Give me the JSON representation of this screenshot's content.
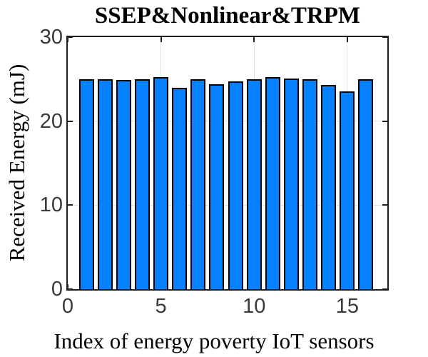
{
  "chart_data": {
    "type": "bar",
    "title": "SSEP&Nonlinear&TRPM",
    "xlabel": "Index of energy poverty IoT sensors",
    "ylabel": "Received Energy (mJ)",
    "x": [
      1,
      2,
      3,
      4,
      5,
      6,
      7,
      8,
      9,
      10,
      11,
      12,
      13,
      14,
      15,
      16
    ],
    "values": [
      25.0,
      25.0,
      24.9,
      25.0,
      25.2,
      24.0,
      25.0,
      24.4,
      24.7,
      25.0,
      25.2,
      25.1,
      25.0,
      24.3,
      23.5,
      25.0
    ],
    "xlim": [
      0,
      17.15
    ],
    "ylim": [
      0,
      30
    ],
    "xticks": [
      0,
      5,
      10,
      15
    ],
    "yticks": [
      0,
      10,
      20,
      30
    ],
    "grid": true,
    "legend": null,
    "bar_width_fraction": 0.8,
    "colors": {
      "bar_fill": "#0681ff",
      "bar_edge": "#000000",
      "axis": "#1f1f1f",
      "grid": "#e0e0e0",
      "tick_label": "#3a3a3a",
      "label": "#000000"
    }
  }
}
